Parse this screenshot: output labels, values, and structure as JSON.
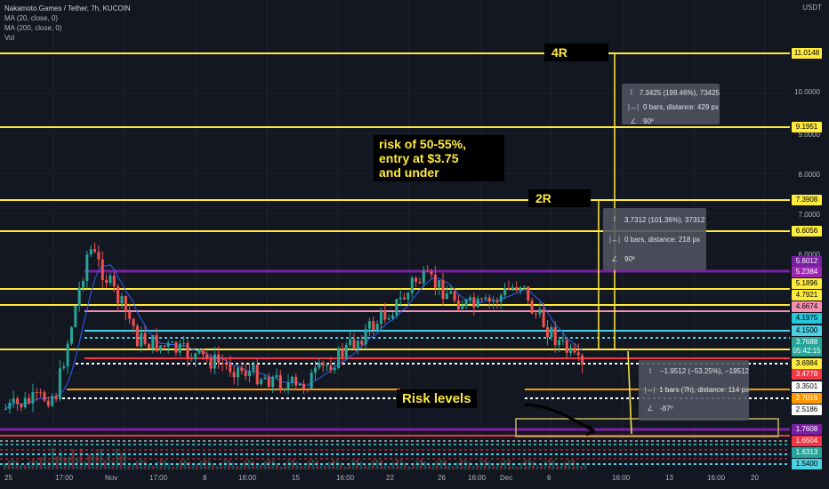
{
  "legend": {
    "title": "Nakamoto.Games / Tether, 7h, KUCOIN",
    "ma1": "MA (20, close, 0)",
    "ma2": "MA (200, close, 0)",
    "vol": "Vol"
  },
  "currency": "USDT",
  "annotations": {
    "risk_note": [
      "risk of 50-55%,",
      "entry at $3.75",
      "and under"
    ],
    "r4": "4R",
    "r2": "2R",
    "risk_levels": "Risk levels"
  },
  "measures": [
    {
      "range": "7.3425 (199.46%), 73425",
      "bars": "0 bars, distance: 429 px",
      "angle": "90º"
    },
    {
      "range": "3.7312 (101.36%), 37312",
      "bars": "0 bars, distance: 218 px",
      "angle": "90º"
    },
    {
      "range": "−1.9512 (−53.25%), −19512",
      "bars": "1 bars (7h), distance: 114 px",
      "angle": "-87º"
    }
  ],
  "price_axis": {
    "ticks": [
      "10.0000",
      "9.0000",
      "8.0000",
      "7.0000",
      "6.0000"
    ],
    "labels": [
      {
        "text": "11.0148",
        "color": "#ffeb3b"
      },
      {
        "text": "9.1951",
        "color": "#ffeb3b"
      },
      {
        "text": "7.3908",
        "color": "#ffeb3b"
      },
      {
        "text": "6.6056",
        "color": "#ffeb3b"
      },
      {
        "text": "5.6012",
        "color": "#7b1fa2"
      },
      {
        "text": "5.2384",
        "color": "#9c27b0"
      },
      {
        "text": "5.1896",
        "color": "#ffeb3b"
      },
      {
        "text": "4.7921",
        "color": "#ffeb3b"
      },
      {
        "text": "4.6674",
        "color": "#f48fb1"
      },
      {
        "text": "4.1975",
        "color": "#26c6da"
      },
      {
        "text": "4.1500",
        "color": "#4dd0e1"
      },
      {
        "text": "3.7688",
        "color": "#26a69a"
      },
      {
        "text": "05:42:15",
        "color": "#26a69a"
      },
      {
        "text": "3.6984",
        "color": "#ffeb3b"
      },
      {
        "text": "3.4778",
        "color": "#f23645"
      },
      {
        "text": "3.3501",
        "color": "#ffffff"
      },
      {
        "text": "2.7019",
        "color": "#ff9800"
      },
      {
        "text": "2.5186",
        "color": "#ffffff"
      },
      {
        "text": "1.7608",
        "color": "#7b1fa2"
      },
      {
        "text": "1.6504",
        "color": "#f23645"
      },
      {
        "text": "1.6313",
        "color": "#26a69a"
      },
      {
        "text": "1.5400",
        "color": "#4dd0e1"
      }
    ]
  },
  "time_axis": [
    "25",
    "17:00",
    "Nov",
    "17:00",
    "8",
    "16:00",
    "15",
    "16:00",
    "22",
    "26",
    "16:00",
    "Dec",
    "6",
    "16:00",
    "13",
    "16:00",
    "20"
  ],
  "colors": {
    "up": "#26a69a",
    "down": "#ef5350",
    "yellow": "#ffeb3b",
    "purple": "#7b1fa2",
    "pink": "#f23645",
    "cyan": "#4dd0e1",
    "orange": "#ff9800"
  }
}
